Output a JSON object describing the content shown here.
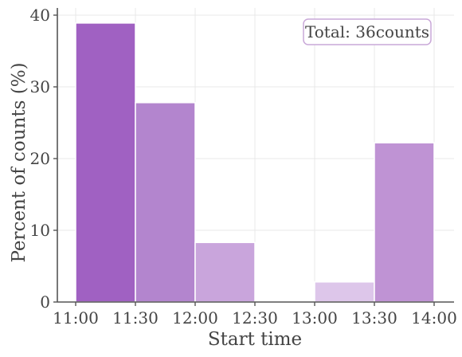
{
  "chart_data": {
    "type": "bar",
    "subtype": "histogram",
    "bins": [
      {
        "start": "11:00",
        "end": "11:30",
        "value": 38.9,
        "color": "#a061c2"
      },
      {
        "start": "11:30",
        "end": "12:00",
        "value": 27.8,
        "color": "#b385ce"
      },
      {
        "start": "12:00",
        "end": "12:30",
        "value": 8.3,
        "color": "#c9a5dc"
      },
      {
        "start": "12:30",
        "end": "13:00",
        "value": 0,
        "color": "#c9a5dc"
      },
      {
        "start": "13:00",
        "end": "13:30",
        "value": 2.8,
        "color": "#ddc6ea"
      },
      {
        "start": "13:30",
        "end": "14:00",
        "value": 22.2,
        "color": "#bf93d4"
      }
    ],
    "x_ticks": [
      "11:00",
      "11:30",
      "12:00",
      "12:30",
      "13:00",
      "13:30",
      "14:00"
    ],
    "y_ticks": [
      0,
      10,
      20,
      30,
      40
    ],
    "ylim": [
      0,
      41
    ],
    "xlabel": "Start time",
    "ylabel": "Percent of counts (%)",
    "annotation": "Total: 36counts",
    "annotation_position": "top-right",
    "grid": true,
    "grid_color": "#e8e8e8",
    "axis_color": "#555555",
    "annotation_border_color": "#c9a8d8"
  }
}
